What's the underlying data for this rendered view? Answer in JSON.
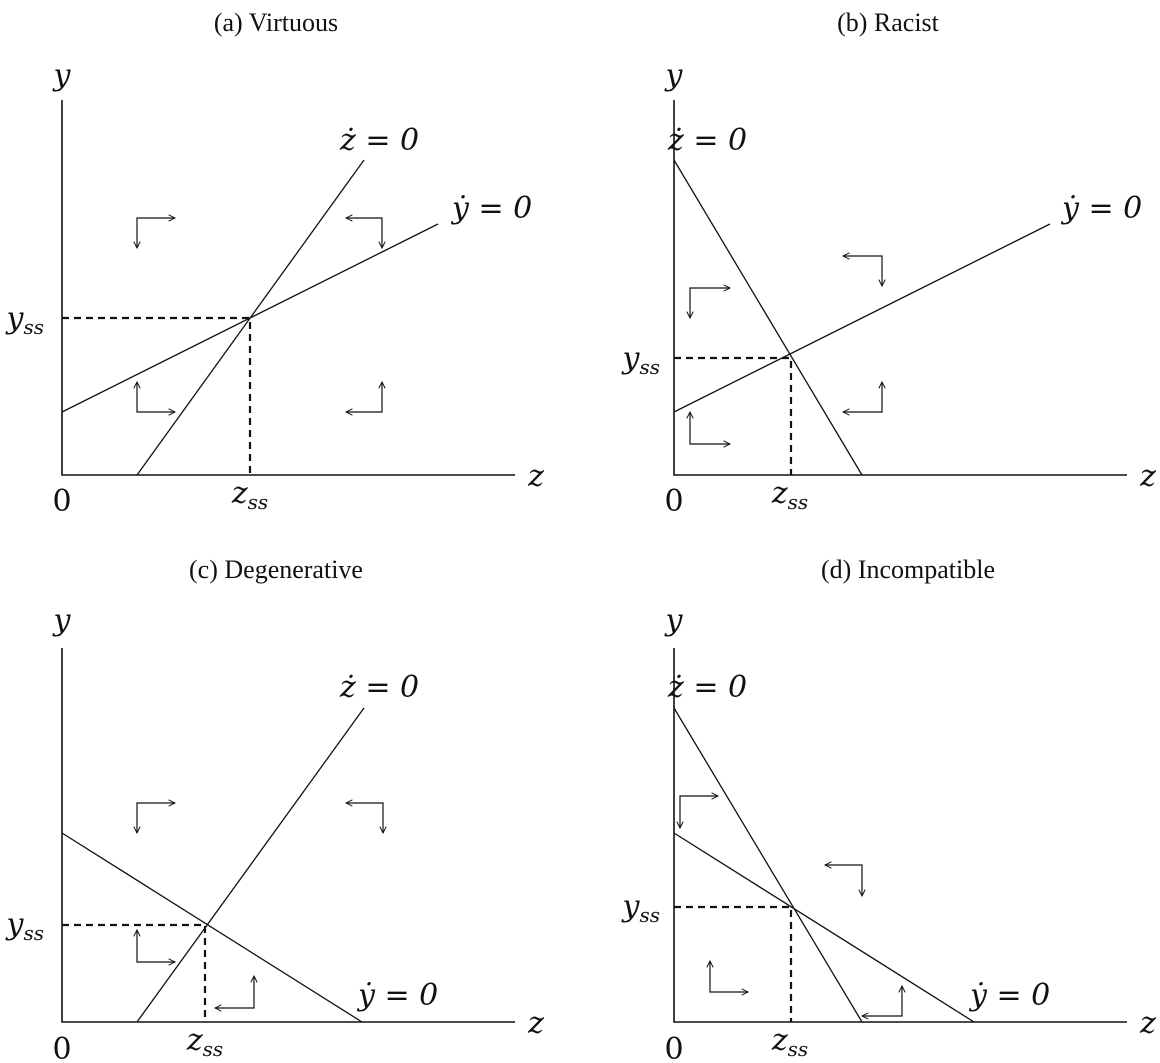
{
  "figure": {
    "panels": [
      {
        "id": "a",
        "title": "(a) Virtuous",
        "y_label": "y",
        "z_label": "z",
        "origin_label": "0",
        "yss_label": "y",
        "yss_sub": "ss",
        "zss_label": "z",
        "zss_sub": "ss",
        "zdot_label": "ż = 0",
        "ydot_label": "ẏ = 0"
      },
      {
        "id": "b",
        "title": "(b) Racist",
        "y_label": "y",
        "z_label": "z",
        "origin_label": "0",
        "yss_label": "y",
        "yss_sub": "ss",
        "zss_label": "z",
        "zss_sub": "ss",
        "zdot_label": "ż = 0",
        "ydot_label": "ẏ = 0"
      },
      {
        "id": "c",
        "title": "(c) Degenerative",
        "y_label": "y",
        "z_label": "z",
        "origin_label": "0",
        "yss_label": "y",
        "yss_sub": "ss",
        "zss_label": "z",
        "zss_sub": "ss",
        "zdot_label": "ż = 0",
        "ydot_label": "ẏ = 0"
      },
      {
        "id": "d",
        "title": "(d) Incompatible",
        "y_label": "y",
        "z_label": "z",
        "origin_label": "0",
        "yss_label": "y",
        "yss_sub": "ss",
        "zss_label": "z",
        "zss_sub": "ss",
        "zdot_label": "ż = 0",
        "ydot_label": "ẏ = 0"
      }
    ]
  }
}
